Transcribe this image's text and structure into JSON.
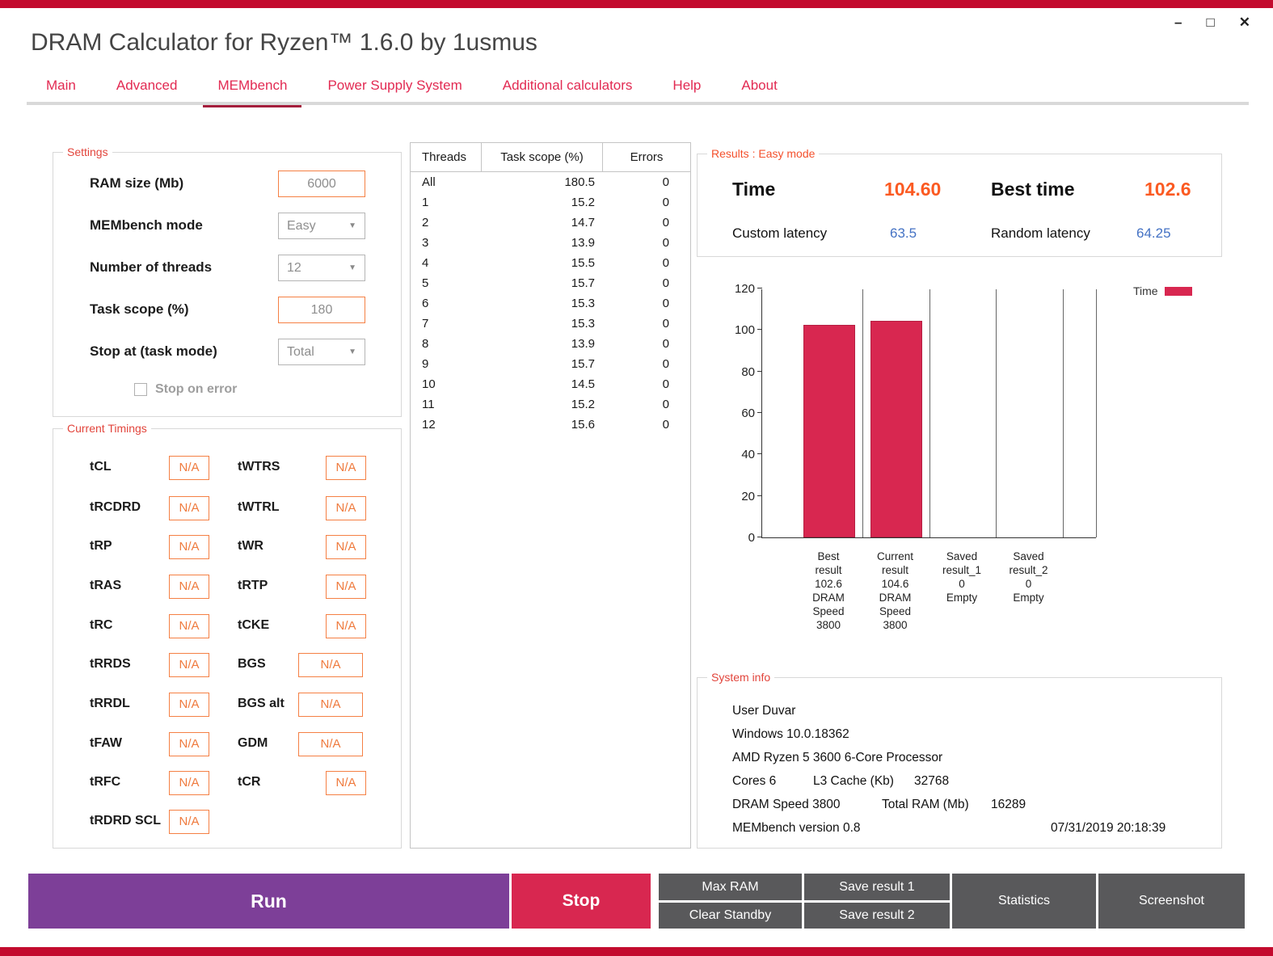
{
  "window": {
    "title": "DRAM Calculator for Ryzen™ 1.6.0 by 1usmus",
    "controls": {
      "minimize": "–",
      "maximize": "□",
      "close": "✕"
    }
  },
  "tabs": [
    {
      "label": "Main",
      "active": false
    },
    {
      "label": "Advanced",
      "active": false
    },
    {
      "label": "MEMbench",
      "active": true
    },
    {
      "label": "Power Supply System",
      "active": false
    },
    {
      "label": "Additional calculators",
      "active": false
    },
    {
      "label": "Help",
      "active": false
    },
    {
      "label": "About",
      "active": false
    }
  ],
  "settings": {
    "legend": "Settings",
    "ram_size_label": "RAM size (Mb)",
    "ram_size_value": "6000",
    "mode_label": "MEMbench mode",
    "mode_value": "Easy",
    "threads_label": "Number of threads",
    "threads_value": "12",
    "task_scope_label": "Task scope (%)",
    "task_scope_value": "180",
    "stop_at_label": "Stop at (task mode)",
    "stop_at_value": "Total",
    "stop_on_error_label": "Stop on error",
    "stop_on_error_checked": false
  },
  "timings": {
    "legend": "Current Timings",
    "rows": [
      {
        "l1": "tCL",
        "v1": "N/A",
        "l2": "tWTRS",
        "v2": "N/A"
      },
      {
        "l1": "tRCDRD",
        "v1": "N/A",
        "l2": "tWTRL",
        "v2": "N/A"
      },
      {
        "l1": "tRP",
        "v1": "N/A",
        "l2": "tWR",
        "v2": "N/A"
      },
      {
        "l1": "tRAS",
        "v1": "N/A",
        "l2": "tRTP",
        "v2": "N/A"
      },
      {
        "l1": "tRC",
        "v1": "N/A",
        "l2": "tCKE",
        "v2": "N/A"
      },
      {
        "l1": "tRRDS",
        "v1": "N/A",
        "l2": "BGS",
        "v2": "N/A"
      },
      {
        "l1": "tRRDL",
        "v1": "N/A",
        "l2": "BGS alt",
        "v2": "N/A"
      },
      {
        "l1": "tFAW",
        "v1": "N/A",
        "l2": "GDM",
        "v2": "N/A"
      },
      {
        "l1": "tRFC",
        "v1": "N/A",
        "l2": "tCR",
        "v2": "N/A"
      },
      {
        "l1": "tRDRD SCL",
        "v1": "N/A"
      }
    ]
  },
  "threads_table": {
    "headers": [
      "Threads",
      "Task scope (%)",
      "Errors"
    ],
    "rows": [
      [
        "All",
        "180.5",
        "0"
      ],
      [
        "1",
        "15.2",
        "0"
      ],
      [
        "2",
        "14.7",
        "0"
      ],
      [
        "3",
        "13.9",
        "0"
      ],
      [
        "4",
        "15.5",
        "0"
      ],
      [
        "5",
        "15.7",
        "0"
      ],
      [
        "6",
        "15.3",
        "0"
      ],
      [
        "7",
        "15.3",
        "0"
      ],
      [
        "8",
        "13.9",
        "0"
      ],
      [
        "9",
        "15.7",
        "0"
      ],
      [
        "10",
        "14.5",
        "0"
      ],
      [
        "11",
        "15.2",
        "0"
      ],
      [
        "12",
        "15.6",
        "0"
      ]
    ]
  },
  "results": {
    "legend": "Results : Easy mode",
    "time_label": "Time",
    "time_value": "104.60",
    "best_time_label": "Best time",
    "best_time_value": "102.6",
    "custom_latency_label": "Custom latency",
    "custom_latency_value": "63.5",
    "random_latency_label": "Random latency",
    "random_latency_value": "64.25"
  },
  "chart_data": {
    "type": "bar",
    "categories": [
      "Best result",
      "Current result",
      "Saved result_1",
      "Saved result_2"
    ],
    "category_labels": [
      [
        "Best",
        "result",
        "102.6",
        "DRAM",
        "Speed",
        "3800"
      ],
      [
        "Current",
        "result",
        "104.6",
        "DRAM",
        "Speed",
        "3800"
      ],
      [
        "Saved",
        "result_1",
        "0",
        "Empty"
      ],
      [
        "Saved",
        "result_2",
        "0",
        "Empty"
      ]
    ],
    "values": [
      102.6,
      104.6,
      0,
      0
    ],
    "ylim": [
      0,
      120
    ],
    "yticks": [
      0,
      20,
      40,
      60,
      80,
      100,
      120
    ],
    "legend": [
      {
        "name": "Time",
        "color": "#d82750"
      }
    ],
    "bar_color": "#d82750",
    "grid": "vertical-category-lines",
    "legend_position": "top-right"
  },
  "system_info": {
    "legend": "System info",
    "lines": [
      "User Duvar",
      "Windows 10.0.18362",
      "AMD Ryzen 5 3600 6-Core Processor"
    ],
    "cores_label": "Cores 6",
    "l3_label": "L3 Cache (Kb)",
    "l3_value": "32768",
    "dram_label": "DRAM Speed 3800",
    "total_ram_label": "Total RAM (Mb)",
    "total_ram_value": "16289",
    "membench_version": "MEMbench version 0.8",
    "timestamp": "07/31/2019 20:18:39"
  },
  "actions": {
    "run": "Run",
    "stop": "Stop",
    "max_ram": "Max RAM",
    "clear_standby": "Clear Standby",
    "save_result_1": "Save result 1",
    "save_result_2": "Save result 2",
    "statistics": "Statistics",
    "screenshot": "Screenshot"
  },
  "colors": {
    "accent_red": "#c30b2e",
    "tab_red": "#e22a52",
    "active_tab_underline": "#a41e3c",
    "bar_crimson": "#d82750",
    "orange_value": "#fb5a22",
    "blue_value": "#4472c4",
    "run_purple": "#7d3f98",
    "gray_button": "#59595b",
    "orange_border": "#f58044"
  }
}
